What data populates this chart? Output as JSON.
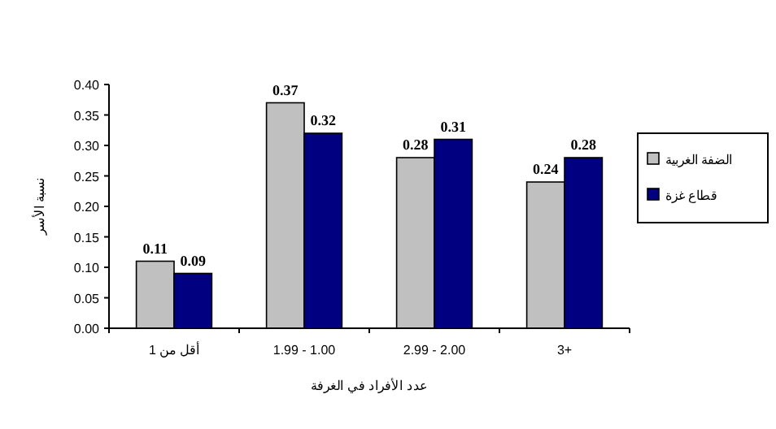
{
  "chart_data": {
    "type": "bar",
    "xlabel": "عدد الأفراد في الغرفة",
    "ylabel": "نسبة الأسر",
    "categories": [
      "أقل من 1",
      "1.99 - 1.00",
      "2.99 - 2.00",
      "3+"
    ],
    "series": [
      {
        "name": "الضفة الغربية",
        "color": "#c0c0c0",
        "values": [
          0.11,
          0.37,
          0.28,
          0.24
        ]
      },
      {
        "name": "قطاع غزة",
        "color": "#000080",
        "values": [
          0.09,
          0.32,
          0.31,
          0.28
        ]
      }
    ],
    "ylim": [
      0,
      0.4
    ],
    "yticks": [
      {
        "value": 0,
        "label": "0.00"
      },
      {
        "value": 0.05,
        "label": "0.05"
      },
      {
        "value": 0.1,
        "label": "0.10"
      },
      {
        "value": 0.15,
        "label": "0.15"
      },
      {
        "value": 0.2,
        "label": "0.20"
      },
      {
        "value": 0.25,
        "label": "0.25"
      },
      {
        "value": 0.3,
        "label": "0.30"
      },
      {
        "value": 0.35,
        "label": "0.35"
      },
      {
        "value": 0.4,
        "label": "0.40"
      }
    ],
    "data_labels": true,
    "legend": "right"
  }
}
